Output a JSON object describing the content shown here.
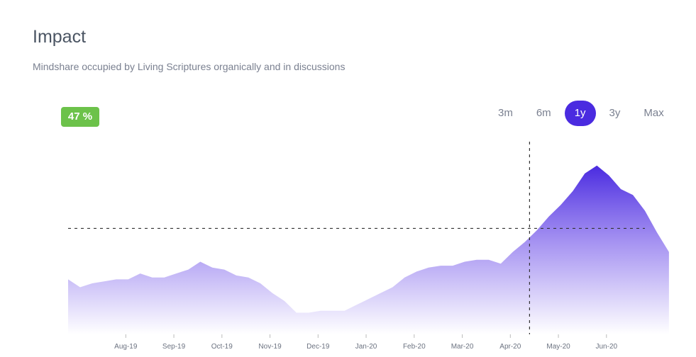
{
  "header": {
    "title": "Impact",
    "subtitle": "Mindshare occupied by Living Scriptures organically and in discussions"
  },
  "badge": {
    "value": "47 %",
    "color": "#6cc24a"
  },
  "ranges": [
    {
      "label": "3m",
      "active": false
    },
    {
      "label": "6m",
      "active": false
    },
    {
      "label": "1y",
      "active": true
    },
    {
      "label": "3y",
      "active": false
    },
    {
      "label": "Max",
      "active": false
    }
  ],
  "colors": {
    "accent": "#4a2be0",
    "area_top": "#4a2be0",
    "area_bottom": "#ffffff"
  },
  "chart_data": {
    "type": "area",
    "title": "",
    "xlabel": "",
    "ylabel": "",
    "x_ticks": [
      "Aug-19",
      "Sep-19",
      "Oct-19",
      "Nov-19",
      "Dec-19",
      "Jan-20",
      "Feb-20",
      "Mar-20",
      "Apr-20",
      "May-20",
      "Jun-20"
    ],
    "x_tick_positions": [
      1.2,
      2.2,
      3.2,
      4.2,
      5.2,
      6.2,
      7.2,
      8.2,
      9.2,
      10.2,
      11.2
    ],
    "x_range": [
      0,
      12
    ],
    "ylim": [
      0,
      100
    ],
    "series": [
      {
        "values": [
          [
            0.0,
            28
          ],
          [
            0.25,
            24
          ],
          [
            0.5,
            26
          ],
          [
            0.75,
            27
          ],
          [
            1.0,
            28
          ],
          [
            1.25,
            28
          ],
          [
            1.5,
            31
          ],
          [
            1.75,
            29
          ],
          [
            2.0,
            29
          ],
          [
            2.25,
            31
          ],
          [
            2.5,
            33
          ],
          [
            2.75,
            37
          ],
          [
            3.0,
            34
          ],
          [
            3.25,
            33
          ],
          [
            3.5,
            30
          ],
          [
            3.75,
            29
          ],
          [
            4.0,
            26
          ],
          [
            4.25,
            21
          ],
          [
            4.5,
            17
          ],
          [
            4.75,
            11
          ],
          [
            5.0,
            11
          ],
          [
            5.25,
            12
          ],
          [
            5.5,
            12
          ],
          [
            5.75,
            12
          ],
          [
            6.0,
            15
          ],
          [
            6.25,
            18
          ],
          [
            6.5,
            21
          ],
          [
            6.75,
            24
          ],
          [
            7.0,
            29
          ],
          [
            7.25,
            32
          ],
          [
            7.5,
            34
          ],
          [
            7.75,
            35
          ],
          [
            8.0,
            35
          ],
          [
            8.25,
            37
          ],
          [
            8.5,
            38
          ],
          [
            8.75,
            38
          ],
          [
            9.0,
            36
          ],
          [
            9.25,
            42
          ],
          [
            9.5,
            47
          ],
          [
            9.75,
            53
          ],
          [
            10.0,
            60
          ],
          [
            10.25,
            66
          ],
          [
            10.5,
            73
          ],
          [
            10.75,
            82
          ],
          [
            11.0,
            86
          ],
          [
            11.25,
            81
          ],
          [
            11.5,
            74
          ],
          [
            11.75,
            71
          ],
          [
            12.0,
            63
          ],
          [
            12.25,
            52
          ],
          [
            12.5,
            42
          ]
        ]
      }
    ],
    "reference_line_y": 54,
    "marker_x": 9.6,
    "grid": false,
    "legend": "none"
  }
}
